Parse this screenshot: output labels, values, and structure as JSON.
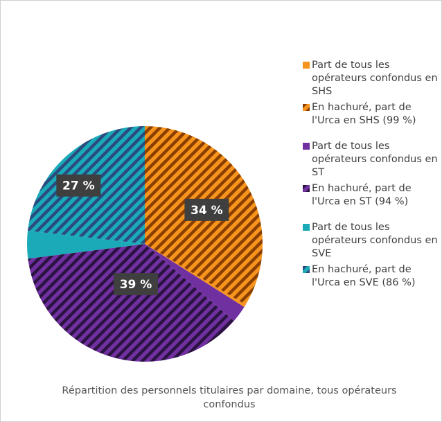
{
  "chart_data": {
    "type": "pie",
    "title": "Répartition des personnels titulaires par domaine, tous opérateurs confondus",
    "values": [
      34,
      39,
      27
    ],
    "value_labels": [
      "34 %",
      "39 %",
      "27 %"
    ],
    "hatched_shares": [
      99,
      94,
      86
    ],
    "colors": [
      "#f7941d",
      "#7030a0",
      "#1aaab8"
    ],
    "hatch_colors": [
      "#8a3f00",
      "#2a1340",
      "#2b4a80"
    ],
    "legend": [
      [
        "Part de tous les opérateurs confondus en SHS",
        "En hachuré, part de l'Urca en SHS (99 %)"
      ],
      [
        "Part de tous les opérateurs confondus en ST",
        "En hachuré, part de l'Urca en ST (94 %)"
      ],
      [
        "Part de tous les opérateurs confondus en SVE",
        "En hachuré, part de l'Urca en SVE (86 %)"
      ]
    ]
  }
}
